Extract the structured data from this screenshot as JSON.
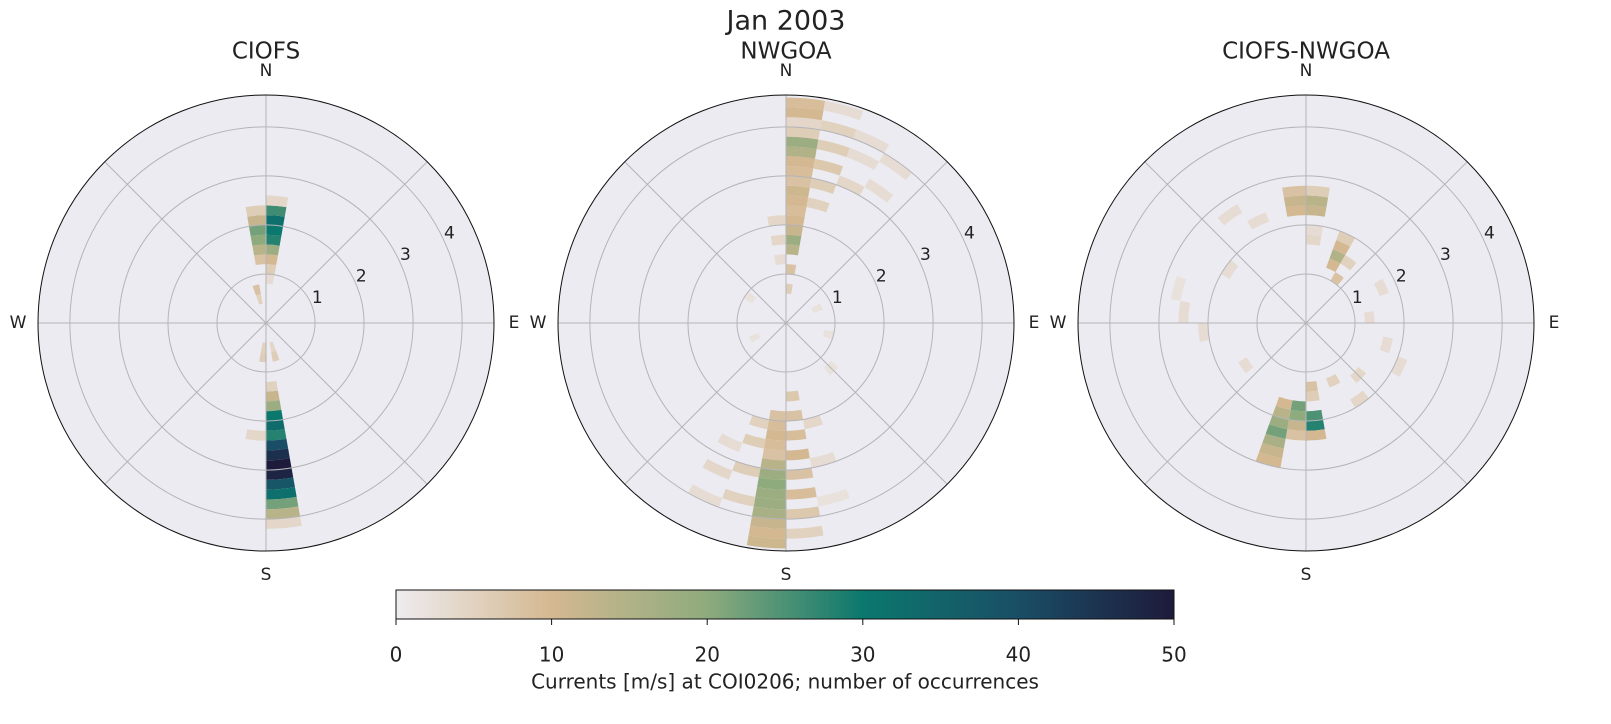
{
  "chart_data": {
    "type": "polar_histogram",
    "title": "Jan 2003",
    "direction_labels": [
      "N",
      "E",
      "S",
      "W"
    ],
    "rlim": [
      0,
      4.65
    ],
    "rticks": [
      1,
      2,
      3,
      4
    ],
    "direction_bin_width": 10,
    "speed_bin_width": 0.2,
    "panels": [
      {
        "title": "CIOFS",
        "cells": [
          [
            0,
            0.8,
            3
          ],
          [
            0,
            1.0,
            6
          ],
          [
            0,
            1.2,
            10
          ],
          [
            0,
            1.4,
            18
          ],
          [
            0,
            1.6,
            28
          ],
          [
            0,
            1.8,
            30
          ],
          [
            0,
            2.0,
            32
          ],
          [
            0,
            2.2,
            26
          ],
          [
            0,
            2.4,
            4
          ],
          [
            350,
            1.2,
            8
          ],
          [
            350,
            1.4,
            14
          ],
          [
            350,
            1.6,
            20
          ],
          [
            350,
            1.8,
            22
          ],
          [
            350,
            2.0,
            12
          ],
          [
            350,
            2.2,
            6
          ],
          [
            340,
            0.4,
            5
          ],
          [
            340,
            0.6,
            8
          ],
          [
            170,
            1.2,
            5
          ],
          [
            170,
            1.4,
            12
          ],
          [
            170,
            1.6,
            18
          ],
          [
            170,
            1.8,
            30
          ],
          [
            170,
            2.0,
            33
          ],
          [
            170,
            2.2,
            28
          ],
          [
            170,
            2.4,
            40
          ],
          [
            170,
            2.6,
            46
          ],
          [
            170,
            2.8,
            50
          ],
          [
            170,
            3.0,
            48
          ],
          [
            170,
            3.2,
            38
          ],
          [
            170,
            3.4,
            32
          ],
          [
            170,
            3.6,
            22
          ],
          [
            170,
            3.8,
            14
          ],
          [
            170,
            4.0,
            4
          ],
          [
            180,
            0.4,
            5
          ],
          [
            180,
            0.6,
            6
          ],
          [
            180,
            2.2,
            4
          ],
          [
            160,
            0.4,
            4
          ],
          [
            160,
            0.6,
            6
          ]
        ]
      },
      {
        "title": "NWGOA",
        "cells": [
          [
            0,
            0.6,
            6
          ],
          [
            0,
            1.0,
            8
          ],
          [
            0,
            1.4,
            14
          ],
          [
            0,
            1.6,
            18
          ],
          [
            0,
            1.8,
            12
          ],
          [
            0,
            2.0,
            10
          ],
          [
            0,
            2.2,
            9
          ],
          [
            0,
            2.4,
            10
          ],
          [
            0,
            2.6,
            11
          ],
          [
            0,
            2.8,
            8
          ],
          [
            0,
            3.0,
            9
          ],
          [
            0,
            3.2,
            10
          ],
          [
            0,
            3.4,
            15
          ],
          [
            0,
            3.6,
            18
          ],
          [
            0,
            3.8,
            6
          ],
          [
            0,
            4.0,
            4
          ],
          [
            0,
            4.2,
            10
          ],
          [
            0,
            4.4,
            9
          ],
          [
            10,
            2.4,
            5
          ],
          [
            10,
            2.8,
            6
          ],
          [
            10,
            3.2,
            7
          ],
          [
            10,
            3.6,
            6
          ],
          [
            10,
            4.0,
            5
          ],
          [
            10,
            4.4,
            3
          ],
          [
            20,
            3.0,
            4
          ],
          [
            20,
            3.6,
            3
          ],
          [
            20,
            4.0,
            3
          ],
          [
            30,
            3.2,
            3
          ],
          [
            30,
            3.8,
            3
          ],
          [
            350,
            1.2,
            3
          ],
          [
            350,
            1.6,
            4
          ],
          [
            350,
            2.0,
            4
          ],
          [
            170,
            1.4,
            7
          ],
          [
            170,
            1.8,
            8
          ],
          [
            170,
            2.2,
            9
          ],
          [
            170,
            2.6,
            10
          ],
          [
            170,
            3.0,
            8
          ],
          [
            170,
            3.4,
            9
          ],
          [
            170,
            3.8,
            7
          ],
          [
            170,
            4.2,
            5
          ],
          [
            180,
            1.8,
            8
          ],
          [
            180,
            2.0,
            9
          ],
          [
            180,
            2.2,
            10
          ],
          [
            180,
            2.4,
            9
          ],
          [
            180,
            2.6,
            8
          ],
          [
            180,
            2.8,
            14
          ],
          [
            180,
            3.0,
            18
          ],
          [
            180,
            3.2,
            20
          ],
          [
            180,
            3.4,
            18
          ],
          [
            180,
            3.6,
            18
          ],
          [
            180,
            3.8,
            16
          ],
          [
            180,
            4.0,
            12
          ],
          [
            180,
            4.2,
            10
          ],
          [
            180,
            4.4,
            11
          ],
          [
            190,
            2.0,
            5
          ],
          [
            190,
            2.4,
            6
          ],
          [
            190,
            3.0,
            6
          ],
          [
            190,
            3.6,
            5
          ],
          [
            200,
            2.6,
            3
          ],
          [
            200,
            3.2,
            4
          ],
          [
            200,
            3.8,
            3
          ],
          [
            160,
            2.0,
            4
          ],
          [
            160,
            2.8,
            3
          ],
          [
            160,
            3.6,
            2
          ],
          [
            60,
            0.6,
            2
          ],
          [
            100,
            0.8,
            2
          ],
          [
            130,
            1.2,
            2
          ],
          [
            240,
            0.6,
            2
          ],
          [
            300,
            0.8,
            2
          ]
        ]
      },
      {
        "title": "CIOFS-NWGOA",
        "cells": [
          [
            0,
            1.6,
            4
          ],
          [
            0,
            1.8,
            3
          ],
          [
            0,
            2.2,
            12
          ],
          [
            0,
            2.4,
            14
          ],
          [
            0,
            2.6,
            6
          ],
          [
            350,
            2.2,
            10
          ],
          [
            350,
            2.4,
            12
          ],
          [
            350,
            2.6,
            8
          ],
          [
            20,
            1.2,
            10
          ],
          [
            20,
            1.4,
            15
          ],
          [
            20,
            1.6,
            10
          ],
          [
            20,
            1.8,
            6
          ],
          [
            30,
            1.0,
            8
          ],
          [
            30,
            1.4,
            5
          ],
          [
            170,
            1.2,
            8
          ],
          [
            170,
            1.4,
            6
          ],
          [
            170,
            1.8,
            25
          ],
          [
            170,
            2.0,
            28
          ],
          [
            170,
            2.2,
            10
          ],
          [
            180,
            1.6,
            22
          ],
          [
            180,
            1.8,
            20
          ],
          [
            180,
            2.0,
            12
          ],
          [
            180,
            2.2,
            8
          ],
          [
            190,
            1.6,
            10
          ],
          [
            190,
            1.8,
            14
          ],
          [
            190,
            2.0,
            18
          ],
          [
            190,
            2.2,
            22
          ],
          [
            190,
            2.4,
            16
          ],
          [
            190,
            2.6,
            12
          ],
          [
            190,
            2.8,
            10
          ],
          [
            260,
            2.0,
            3
          ],
          [
            270,
            2.4,
            3
          ],
          [
            280,
            2.6,
            2
          ],
          [
            300,
            1.8,
            3
          ],
          [
            320,
            2.6,
            3
          ],
          [
            330,
            2.2,
            3
          ],
          [
            100,
            1.6,
            3
          ],
          [
            110,
            2.0,
            3
          ],
          [
            130,
            1.4,
            4
          ],
          [
            140,
            1.8,
            4
          ],
          [
            150,
            1.2,
            5
          ],
          [
            230,
            1.4,
            3
          ],
          [
            60,
            1.6,
            3
          ],
          [
            80,
            1.2,
            3
          ]
        ]
      }
    ],
    "colorbar": {
      "label": "Currents [m/s] at COI0206; number of occurrences",
      "lim": [
        0,
        50
      ],
      "ticks": [
        0,
        10,
        20,
        30,
        40,
        50
      ],
      "colors": [
        "#eeecef",
        "#d4b891",
        "#8eab7d",
        "#0b786d",
        "#1a4e66",
        "#1e1a3b"
      ]
    }
  }
}
